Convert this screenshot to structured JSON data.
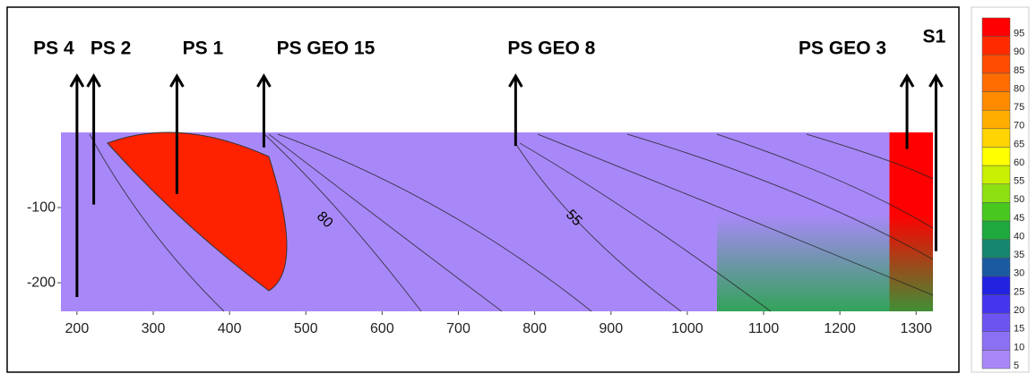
{
  "chart_data": {
    "type": "contour",
    "xlim": [
      179,
      1322
    ],
    "ylim": [
      -238,
      0
    ],
    "xticks": [
      200,
      300,
      400,
      500,
      600,
      700,
      800,
      900,
      1000,
      1100,
      1200,
      1300
    ],
    "yticks": [
      -100,
      -200
    ],
    "clim": [
      5,
      100
    ],
    "cticks": [
      5,
      10,
      15,
      20,
      25,
      30,
      35,
      40,
      45,
      50,
      55,
      60,
      65,
      70,
      75,
      80,
      85,
      90,
      95
    ],
    "colors": [
      "#a888f8",
      "#8c70f4",
      "#6c54f0",
      "#4436ee",
      "#2222e0",
      "#1a5aa0",
      "#17866e",
      "#1ea83e",
      "#48c81e",
      "#8ee012",
      "#c8f000",
      "#ffff00",
      "#ffd400",
      "#ffae00",
      "#ff8c00",
      "#ff6c00",
      "#ff4c00",
      "#ff2a00",
      "#ff0000"
    ],
    "contour_labels": [
      "80",
      "55"
    ],
    "wells": {
      "names": [
        "PS 4",
        "PS 2",
        "PS 1",
        "PS GEO 15",
        "PS GEO 8",
        "PS GEO 3",
        "S1"
      ],
      "x": [
        200,
        222,
        331,
        445,
        775,
        1288,
        1326
      ],
      "depth": [
        -219,
        -96,
        -82,
        -20,
        -18,
        -22,
        -158
      ]
    }
  }
}
